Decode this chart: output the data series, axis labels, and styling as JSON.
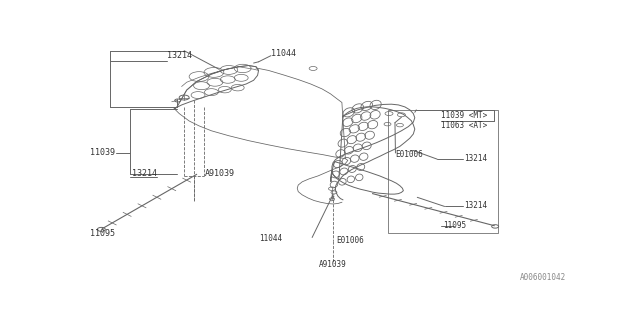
{
  "bg_color": "#ffffff",
  "line_color": "#666666",
  "text_color": "#333333",
  "footer_code": "A006001042",
  "labels": {
    "13214_topleft": [
      0.175,
      0.895,
      "13214"
    ],
    "11044_top": [
      0.385,
      0.935,
      "11044"
    ],
    "11039_left": [
      0.073,
      0.535,
      "11039"
    ],
    "13214_left": [
      0.155,
      0.44,
      "13214"
    ],
    "A91039_left": [
      0.245,
      0.44,
      "A91039"
    ],
    "11095_left": [
      0.068,
      0.21,
      "11095"
    ],
    "11039_MT": [
      0.728,
      0.685,
      "11039 <MT>"
    ],
    "11063_AT": [
      0.728,
      0.645,
      "11063 <AT>"
    ],
    "E01006_rtop": [
      0.636,
      0.525,
      "E01006"
    ],
    "13214_rtop": [
      0.772,
      0.51,
      "13214"
    ],
    "13214_rmid": [
      0.772,
      0.315,
      "13214"
    ],
    "11095_right": [
      0.755,
      0.235,
      "11095"
    ],
    "11044_bot": [
      0.458,
      0.185,
      "11044"
    ],
    "E01006_bot": [
      0.508,
      0.175,
      "E01006"
    ],
    "A91039_bot": [
      0.495,
      0.085,
      "A91039"
    ]
  }
}
